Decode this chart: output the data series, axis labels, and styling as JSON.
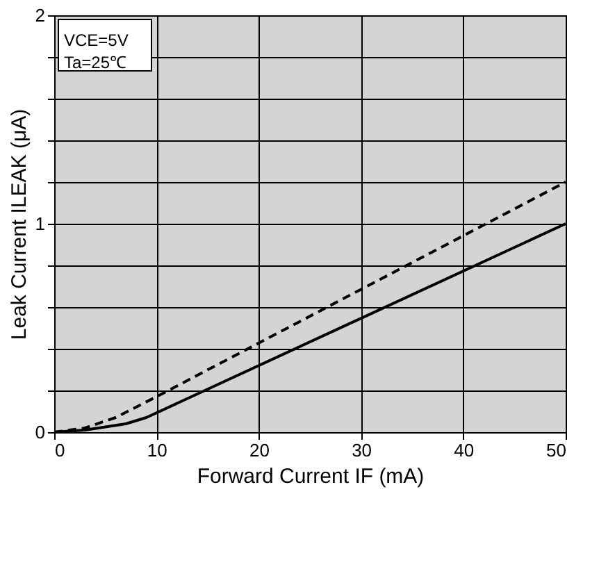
{
  "chart_data": {
    "type": "line",
    "xlabel": "Forward Current  IF  (mA)",
    "ylabel": "Leak Current   ILEAK (μA)",
    "xlim": [
      0,
      50
    ],
    "xticks": [
      0,
      10,
      20,
      30,
      40,
      50
    ],
    "ylim": [
      0,
      2
    ],
    "yticks": [
      0,
      {
        "value": 0.2,
        "label": null
      },
      {
        "value": 0.4,
        "label": null
      },
      {
        "value": 0.6,
        "label": null
      },
      {
        "value": 0.8,
        "label": null
      },
      1,
      {
        "value": 1.2,
        "label": null
      },
      {
        "value": 1.4,
        "label": null
      },
      {
        "value": 1.6,
        "label": null
      },
      {
        "value": 1.8,
        "label": null
      },
      2
    ],
    "grid": true,
    "marker": "none",
    "annotations": [
      "VCE=5V",
      "Ta=25℃"
    ],
    "series": [
      {
        "color": "#000000",
        "line_style": "solid",
        "x": [
          0,
          3,
          7,
          9,
          50
        ],
        "values": [
          0,
          0.01,
          0.04,
          0.07,
          1.0
        ]
      },
      {
        "color": "#000000",
        "line_style": "dashed",
        "x": [
          0,
          3,
          6,
          10,
          50
        ],
        "values": [
          0,
          0.02,
          0.07,
          0.17,
          1.2
        ]
      }
    ]
  }
}
